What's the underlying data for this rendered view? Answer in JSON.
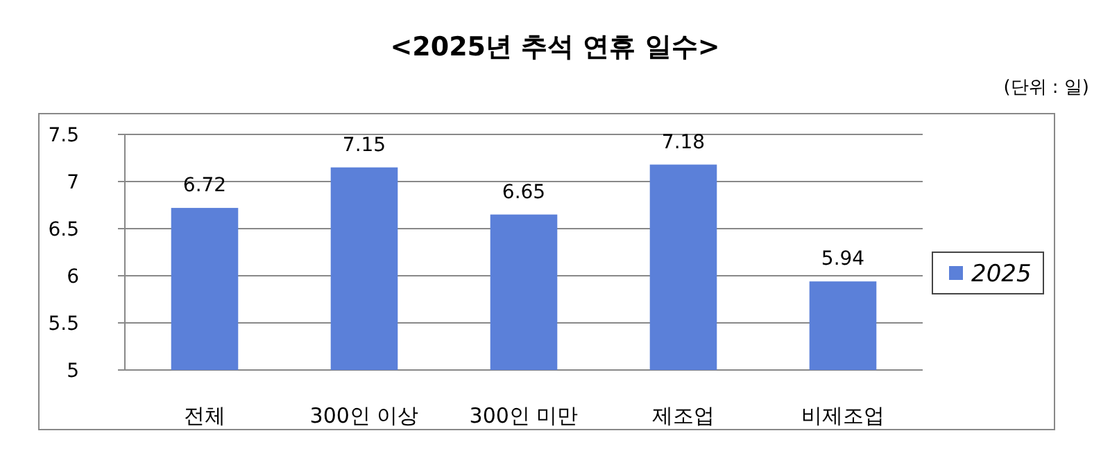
{
  "chart_data": {
    "type": "bar",
    "title": "<2025년 추석 연휴 일수>",
    "annotations": [
      "(단위 : 일)"
    ],
    "categories": [
      "전체",
      "300인 이상",
      "300인 미만",
      "제조업",
      "비제조업"
    ],
    "series": [
      {
        "name": "2025",
        "color": "#5b80d9",
        "values": [
          6.72,
          7.15,
          6.65,
          7.18,
          5.94
        ]
      }
    ],
    "ylim": [
      5,
      7.5
    ],
    "yticks": [
      5,
      5.5,
      6,
      6.5,
      7,
      7.5
    ],
    "grid": "y",
    "legend": "right",
    "data_labels": true
  }
}
